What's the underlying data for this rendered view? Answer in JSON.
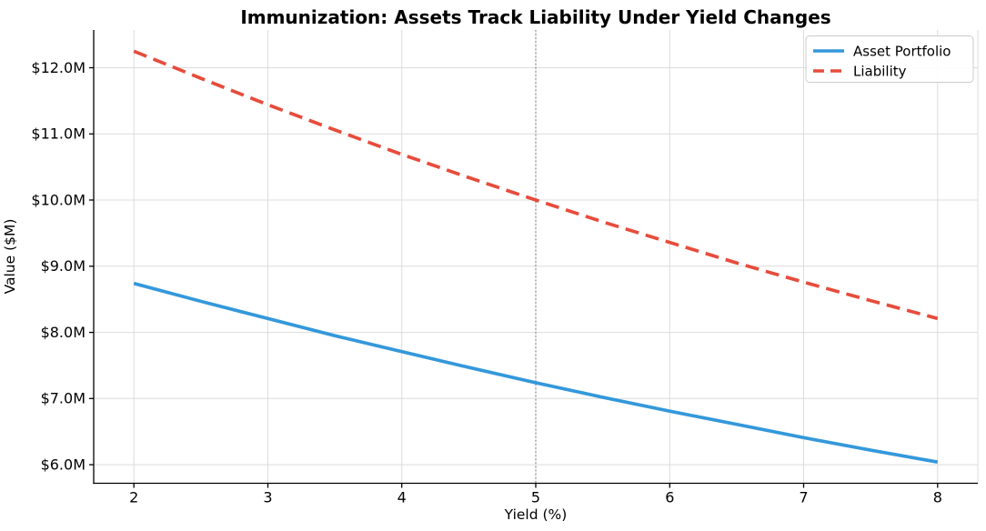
{
  "figure": {
    "background": "#ffffff",
    "text_color": "#000000",
    "spine_color": "#000000",
    "grid_color": "#dcdcdc"
  },
  "chart_data": {
    "type": "line",
    "title": "Immunization: Assets Track Liability Under Yield Changes",
    "xlabel": "Yield (%)",
    "ylabel": "Value ($M)",
    "xlim": [
      1.7,
      8.3
    ],
    "ylim": [
      5.72,
      12.57
    ],
    "x_ticks": [
      2,
      3,
      4,
      5,
      6,
      7,
      8
    ],
    "x_tick_labels": [
      "2",
      "3",
      "4",
      "5",
      "6",
      "7",
      "8"
    ],
    "y_ticks": [
      6,
      7,
      8,
      9,
      10,
      11,
      12
    ],
    "y_tick_labels": [
      "$6.0M",
      "$7.0M",
      "$8.0M",
      "$9.0M",
      "$10.0M",
      "$11.0M",
      "$12.0M"
    ],
    "grid": true,
    "legend_position": "upper right",
    "reference_line": {
      "x": 5,
      "color": "#808080",
      "style": "dotted"
    },
    "x": [
      2,
      2.5,
      3,
      3.5,
      4,
      4.5,
      5,
      5.5,
      6,
      6.5,
      7,
      7.5,
      8
    ],
    "series": [
      {
        "name": "Asset Portfolio",
        "color": "#3498db",
        "style": "solid",
        "values": [
          8.74,
          8.47,
          8.21,
          7.95,
          7.71,
          7.47,
          7.24,
          7.02,
          6.81,
          6.61,
          6.41,
          6.22,
          6.04
        ]
      },
      {
        "name": "Liability",
        "color": "#e74c3c",
        "style": "dashed",
        "values": [
          12.25,
          11.84,
          11.44,
          11.06,
          10.69,
          10.34,
          10.0,
          9.67,
          9.36,
          9.05,
          8.76,
          8.48,
          8.21
        ]
      }
    ]
  }
}
